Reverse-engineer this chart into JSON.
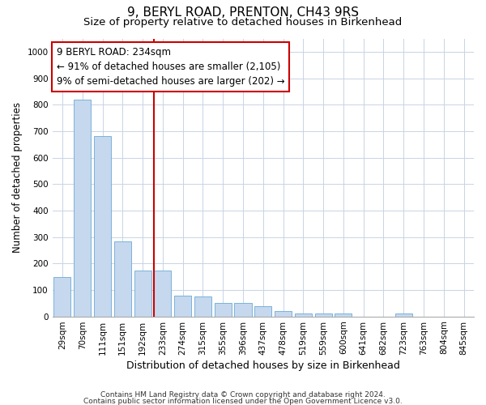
{
  "title": "9, BERYL ROAD, PRENTON, CH43 9RS",
  "subtitle": "Size of property relative to detached houses in Birkenhead",
  "xlabel": "Distribution of detached houses by size in Birkenhead",
  "ylabel": "Number of detached properties",
  "categories": [
    "29sqm",
    "70sqm",
    "111sqm",
    "151sqm",
    "192sqm",
    "233sqm",
    "274sqm",
    "315sqm",
    "355sqm",
    "396sqm",
    "437sqm",
    "478sqm",
    "519sqm",
    "559sqm",
    "600sqm",
    "641sqm",
    "682sqm",
    "723sqm",
    "763sqm",
    "804sqm",
    "845sqm"
  ],
  "values": [
    148,
    820,
    680,
    283,
    172,
    172,
    78,
    75,
    50,
    50,
    40,
    20,
    12,
    10,
    10,
    0,
    0,
    10,
    0,
    0,
    0
  ],
  "bar_color": "#c5d8ee",
  "bar_edge_color": "#6aaad4",
  "vline_color": "#cc0000",
  "annotation_line1": "9 BERYL ROAD: 234sqm",
  "annotation_line2": "← 91% of detached houses are smaller (2,105)",
  "annotation_line3": "9% of semi-detached houses are larger (202) →",
  "annotation_box_color": "#ffffff",
  "annotation_box_edge": "#cc0000",
  "ylim": [
    0,
    1050
  ],
  "yticks": [
    0,
    100,
    200,
    300,
    400,
    500,
    600,
    700,
    800,
    900,
    1000
  ],
  "footnote1": "Contains HM Land Registry data © Crown copyright and database right 2024.",
  "footnote2": "Contains public sector information licensed under the Open Government Licence v3.0.",
  "background_color": "#ffffff",
  "grid_color": "#c8d4e4",
  "title_fontsize": 11,
  "subtitle_fontsize": 9.5,
  "xlabel_fontsize": 9,
  "ylabel_fontsize": 8.5,
  "tick_fontsize": 7.5,
  "annotation_fontsize": 8.5,
  "footnote_fontsize": 6.5
}
